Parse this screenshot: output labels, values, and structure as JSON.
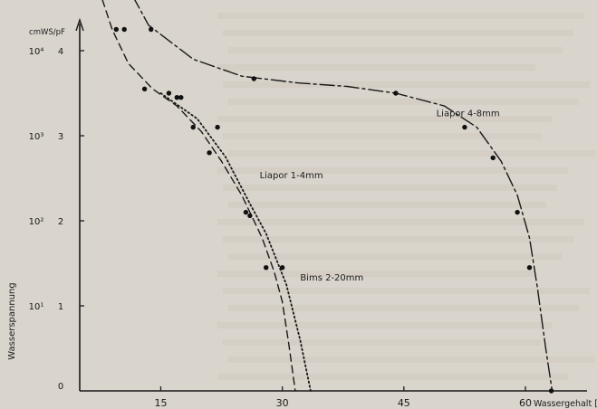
{
  "chart_data": {
    "type": "line",
    "xlabel": "Wassergehalt [Vol.%]",
    "ylabel": "Wasserspannung",
    "y_unit_label": "cmWS/pF",
    "xlim": [
      4,
      67
    ],
    "ylim": [
      0,
      4.6
    ],
    "x_ticks": [
      {
        "value": 15,
        "label": "15"
      },
      {
        "value": 30,
        "label": "30"
      },
      {
        "value": 45,
        "label": "45"
      },
      {
        "value": 60,
        "label": "60"
      }
    ],
    "y_ticks_pf": [
      {
        "value": 0,
        "label": "0"
      },
      {
        "value": 1,
        "label": "1"
      },
      {
        "value": 2,
        "label": "2"
      },
      {
        "value": 3,
        "label": "3"
      },
      {
        "value": 4,
        "label": "4"
      }
    ],
    "y_ticks_cmws": [
      {
        "value": 1,
        "label": "10¹"
      },
      {
        "value": 2,
        "label": "10²"
      },
      {
        "value": 3,
        "label": "10³"
      },
      {
        "value": 4,
        "label": "10⁴"
      }
    ],
    "grid": false,
    "series": [
      {
        "name": "Liapor 4-8mm",
        "style": "dashdot",
        "line": [
          [
            11.5,
            4.65
          ],
          [
            13.5,
            4.3
          ],
          [
            19,
            3.9
          ],
          [
            25,
            3.7
          ],
          [
            32,
            3.62
          ],
          [
            38,
            3.58
          ],
          [
            44,
            3.5
          ],
          [
            50,
            3.35
          ],
          [
            54,
            3.1
          ],
          [
            57,
            2.7
          ],
          [
            59,
            2.3
          ],
          [
            60.5,
            1.8
          ],
          [
            61.5,
            1.2
          ],
          [
            62.5,
            0.5
          ],
          [
            63.3,
            0
          ]
        ],
        "points": [
          [
            13.8,
            4.25
          ],
          [
            26.5,
            3.67
          ],
          [
            44,
            3.5
          ],
          [
            52.5,
            3.1
          ],
          [
            56,
            2.74
          ],
          [
            59,
            2.1
          ],
          [
            60.5,
            1.45
          ],
          [
            63.2,
            0
          ]
        ]
      },
      {
        "name": "Liapor 1-4mm",
        "style": "dashed",
        "line": [
          [
            7.8,
            4.6
          ],
          [
            9,
            4.25
          ],
          [
            11,
            3.85
          ],
          [
            14,
            3.55
          ],
          [
            17,
            3.35
          ],
          [
            20,
            3.05
          ],
          [
            22.5,
            2.7
          ],
          [
            25,
            2.3
          ],
          [
            27.5,
            1.8
          ],
          [
            29,
            1.4
          ],
          [
            30,
            1.05
          ],
          [
            30.8,
            0.55
          ],
          [
            31.6,
            0
          ]
        ],
        "points": [
          [
            9.5,
            4.25
          ],
          [
            10.5,
            4.25
          ],
          [
            13,
            3.55
          ],
          [
            16,
            3.5
          ],
          [
            19,
            3.1
          ],
          [
            21,
            2.8
          ],
          [
            26,
            2.06
          ],
          [
            28,
            1.45
          ]
        ]
      },
      {
        "name": "Bims 2-20mm",
        "style": "dotted",
        "line": [
          [
            15,
            3.5
          ],
          [
            19.5,
            3.2
          ],
          [
            23,
            2.75
          ],
          [
            26,
            2.2
          ],
          [
            28,
            1.85
          ],
          [
            30.5,
            1.25
          ],
          [
            32.2,
            0.6
          ],
          [
            33.5,
            0
          ]
        ],
        "points": [
          [
            17,
            3.45
          ],
          [
            17.5,
            3.45
          ],
          [
            22,
            3.1
          ],
          [
            25.5,
            2.1
          ],
          [
            30,
            1.45
          ]
        ]
      }
    ],
    "annotations": [
      {
        "text": "Liapor 4-8mm",
        "x": 49,
        "y": 3.23
      },
      {
        "text": "Liapor 1-4mm",
        "x": 27.2,
        "y": 2.5
      },
      {
        "text": "Bims 2-20mm",
        "x": 32.2,
        "y": 1.3
      }
    ]
  }
}
